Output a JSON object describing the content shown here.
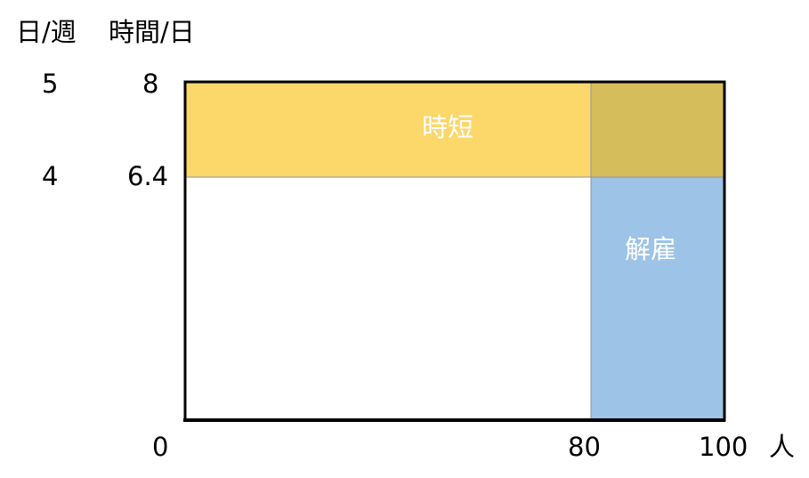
{
  "header": {
    "days_label": "日/週",
    "hours_label": "時間/日"
  },
  "rows": [
    {
      "days": "5",
      "hours": "8"
    },
    {
      "days": "4",
      "hours": "6.4"
    }
  ],
  "x_ticks": [
    "0",
    "80",
    "100"
  ],
  "x_unit": "人",
  "regions": {
    "shortened_hours": {
      "label": "時短",
      "color": "#fcd76a"
    },
    "overlap": {
      "color": "#d6bd5c"
    },
    "dismissal": {
      "label": "解雇",
      "color": "#9dc3e6"
    }
  }
}
